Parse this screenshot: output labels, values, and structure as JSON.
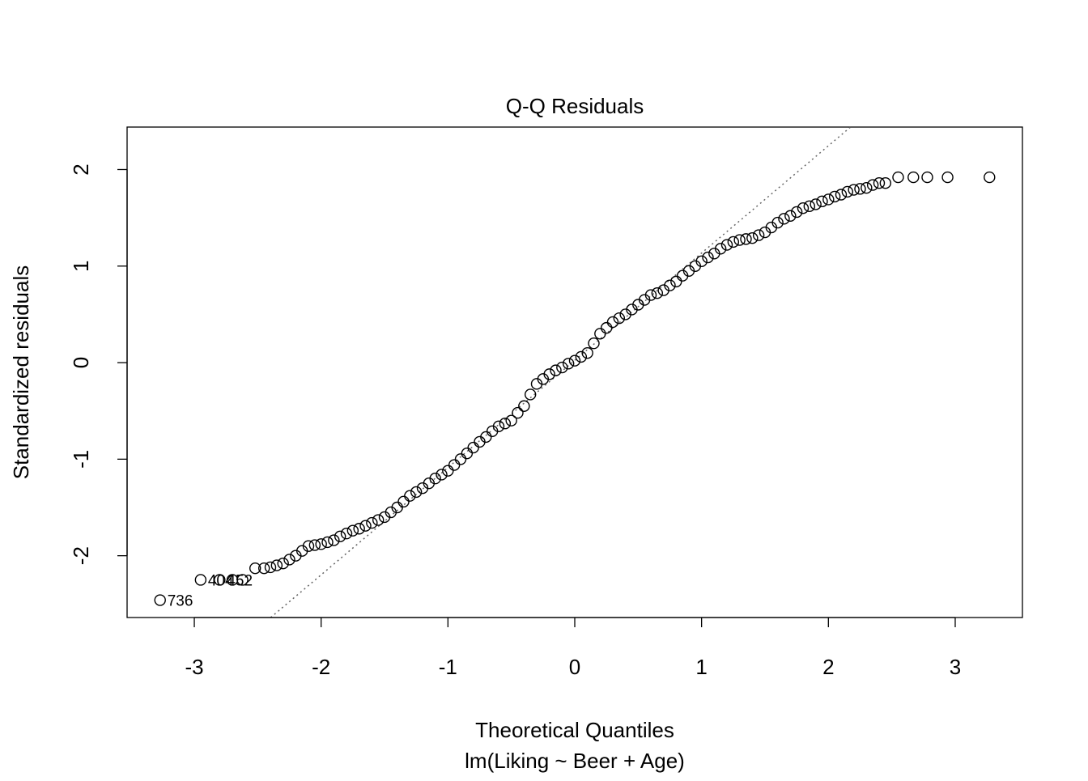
{
  "chart_data": {
    "type": "scatter",
    "title": "Q-Q Residuals",
    "xlabel": "Theoretical Quantiles",
    "subtitle": "lm(Liking ~ Beer + Age)",
    "ylabel": "Standardized residuals",
    "xlim": [
      -3.53,
      3.53
    ],
    "ylim": [
      -2.64,
      2.44
    ],
    "xticks": [
      -3,
      -2,
      -1,
      0,
      1,
      2,
      3
    ],
    "yticks": [
      -2,
      -1,
      0,
      1,
      2
    ],
    "grid": false,
    "marker": "open-circle",
    "reference_line": {
      "style": "dotted",
      "color": "#666666",
      "intercept": 0.024,
      "slope": 1.111
    },
    "points": {
      "x": [
        -3.27,
        -2.95,
        -2.8,
        -2.7,
        -2.62,
        -2.52,
        -2.45,
        -2.4,
        -2.35,
        -2.3,
        -2.25,
        -2.2,
        -2.15,
        -2.1,
        -2.05,
        -2.0,
        -1.95,
        -1.9,
        -1.85,
        -1.8,
        -1.75,
        -1.7,
        -1.65,
        -1.6,
        -1.55,
        -1.5,
        -1.45,
        -1.4,
        -1.35,
        -1.3,
        -1.25,
        -1.2,
        -1.15,
        -1.1,
        -1.05,
        -1.0,
        -0.95,
        -0.9,
        -0.85,
        -0.8,
        -0.75,
        -0.7,
        -0.65,
        -0.6,
        -0.55,
        -0.5,
        -0.45,
        -0.4,
        -0.35,
        -0.3,
        -0.25,
        -0.2,
        -0.15,
        -0.1,
        -0.05,
        0,
        0.05,
        0.1,
        0.15,
        0.2,
        0.25,
        0.3,
        0.35,
        0.4,
        0.45,
        0.5,
        0.55,
        0.6,
        0.65,
        0.7,
        0.75,
        0.8,
        0.85,
        0.9,
        0.95,
        1.0,
        1.05,
        1.1,
        1.15,
        1.2,
        1.25,
        1.3,
        1.35,
        1.4,
        1.45,
        1.5,
        1.55,
        1.6,
        1.65,
        1.7,
        1.75,
        1.8,
        1.85,
        1.9,
        1.95,
        2.0,
        2.05,
        2.1,
        2.15,
        2.2,
        2.25,
        2.3,
        2.35,
        2.4,
        2.45,
        2.55,
        2.67,
        2.78,
        2.94,
        3.27
      ],
      "y": [
        -2.46,
        -2.25,
        -2.25,
        -2.25,
        -2.25,
        -2.13,
        -2.13,
        -2.12,
        -2.1,
        -2.08,
        -2.04,
        -2.0,
        -1.95,
        -1.9,
        -1.89,
        -1.88,
        -1.86,
        -1.84,
        -1.8,
        -1.77,
        -1.74,
        -1.72,
        -1.69,
        -1.66,
        -1.63,
        -1.6,
        -1.55,
        -1.5,
        -1.44,
        -1.38,
        -1.34,
        -1.3,
        -1.25,
        -1.2,
        -1.16,
        -1.12,
        -1.06,
        -1.0,
        -0.94,
        -0.88,
        -0.82,
        -0.77,
        -0.71,
        -0.66,
        -0.63,
        -0.6,
        -0.52,
        -0.45,
        -0.33,
        -0.22,
        -0.17,
        -0.12,
        -0.08,
        -0.05,
        -0.01,
        0.02,
        0.06,
        0.1,
        0.2,
        0.3,
        0.36,
        0.42,
        0.46,
        0.5,
        0.55,
        0.6,
        0.65,
        0.7,
        0.72,
        0.75,
        0.8,
        0.84,
        0.9,
        0.95,
        1.0,
        1.05,
        1.09,
        1.13,
        1.18,
        1.22,
        1.25,
        1.27,
        1.28,
        1.29,
        1.32,
        1.35,
        1.4,
        1.45,
        1.49,
        1.52,
        1.56,
        1.6,
        1.62,
        1.64,
        1.67,
        1.69,
        1.72,
        1.74,
        1.77,
        1.79,
        1.8,
        1.81,
        1.84,
        1.86,
        1.86,
        1.92,
        1.92,
        1.92,
        1.92,
        1.92
      ]
    },
    "annotations": [
      {
        "label": "736",
        "x": -3.27,
        "y": -2.46
      },
      {
        "label": "404",
        "x": -2.95,
        "y": -2.25
      },
      {
        "label": "452",
        "x": -2.8,
        "y": -2.25
      }
    ]
  }
}
